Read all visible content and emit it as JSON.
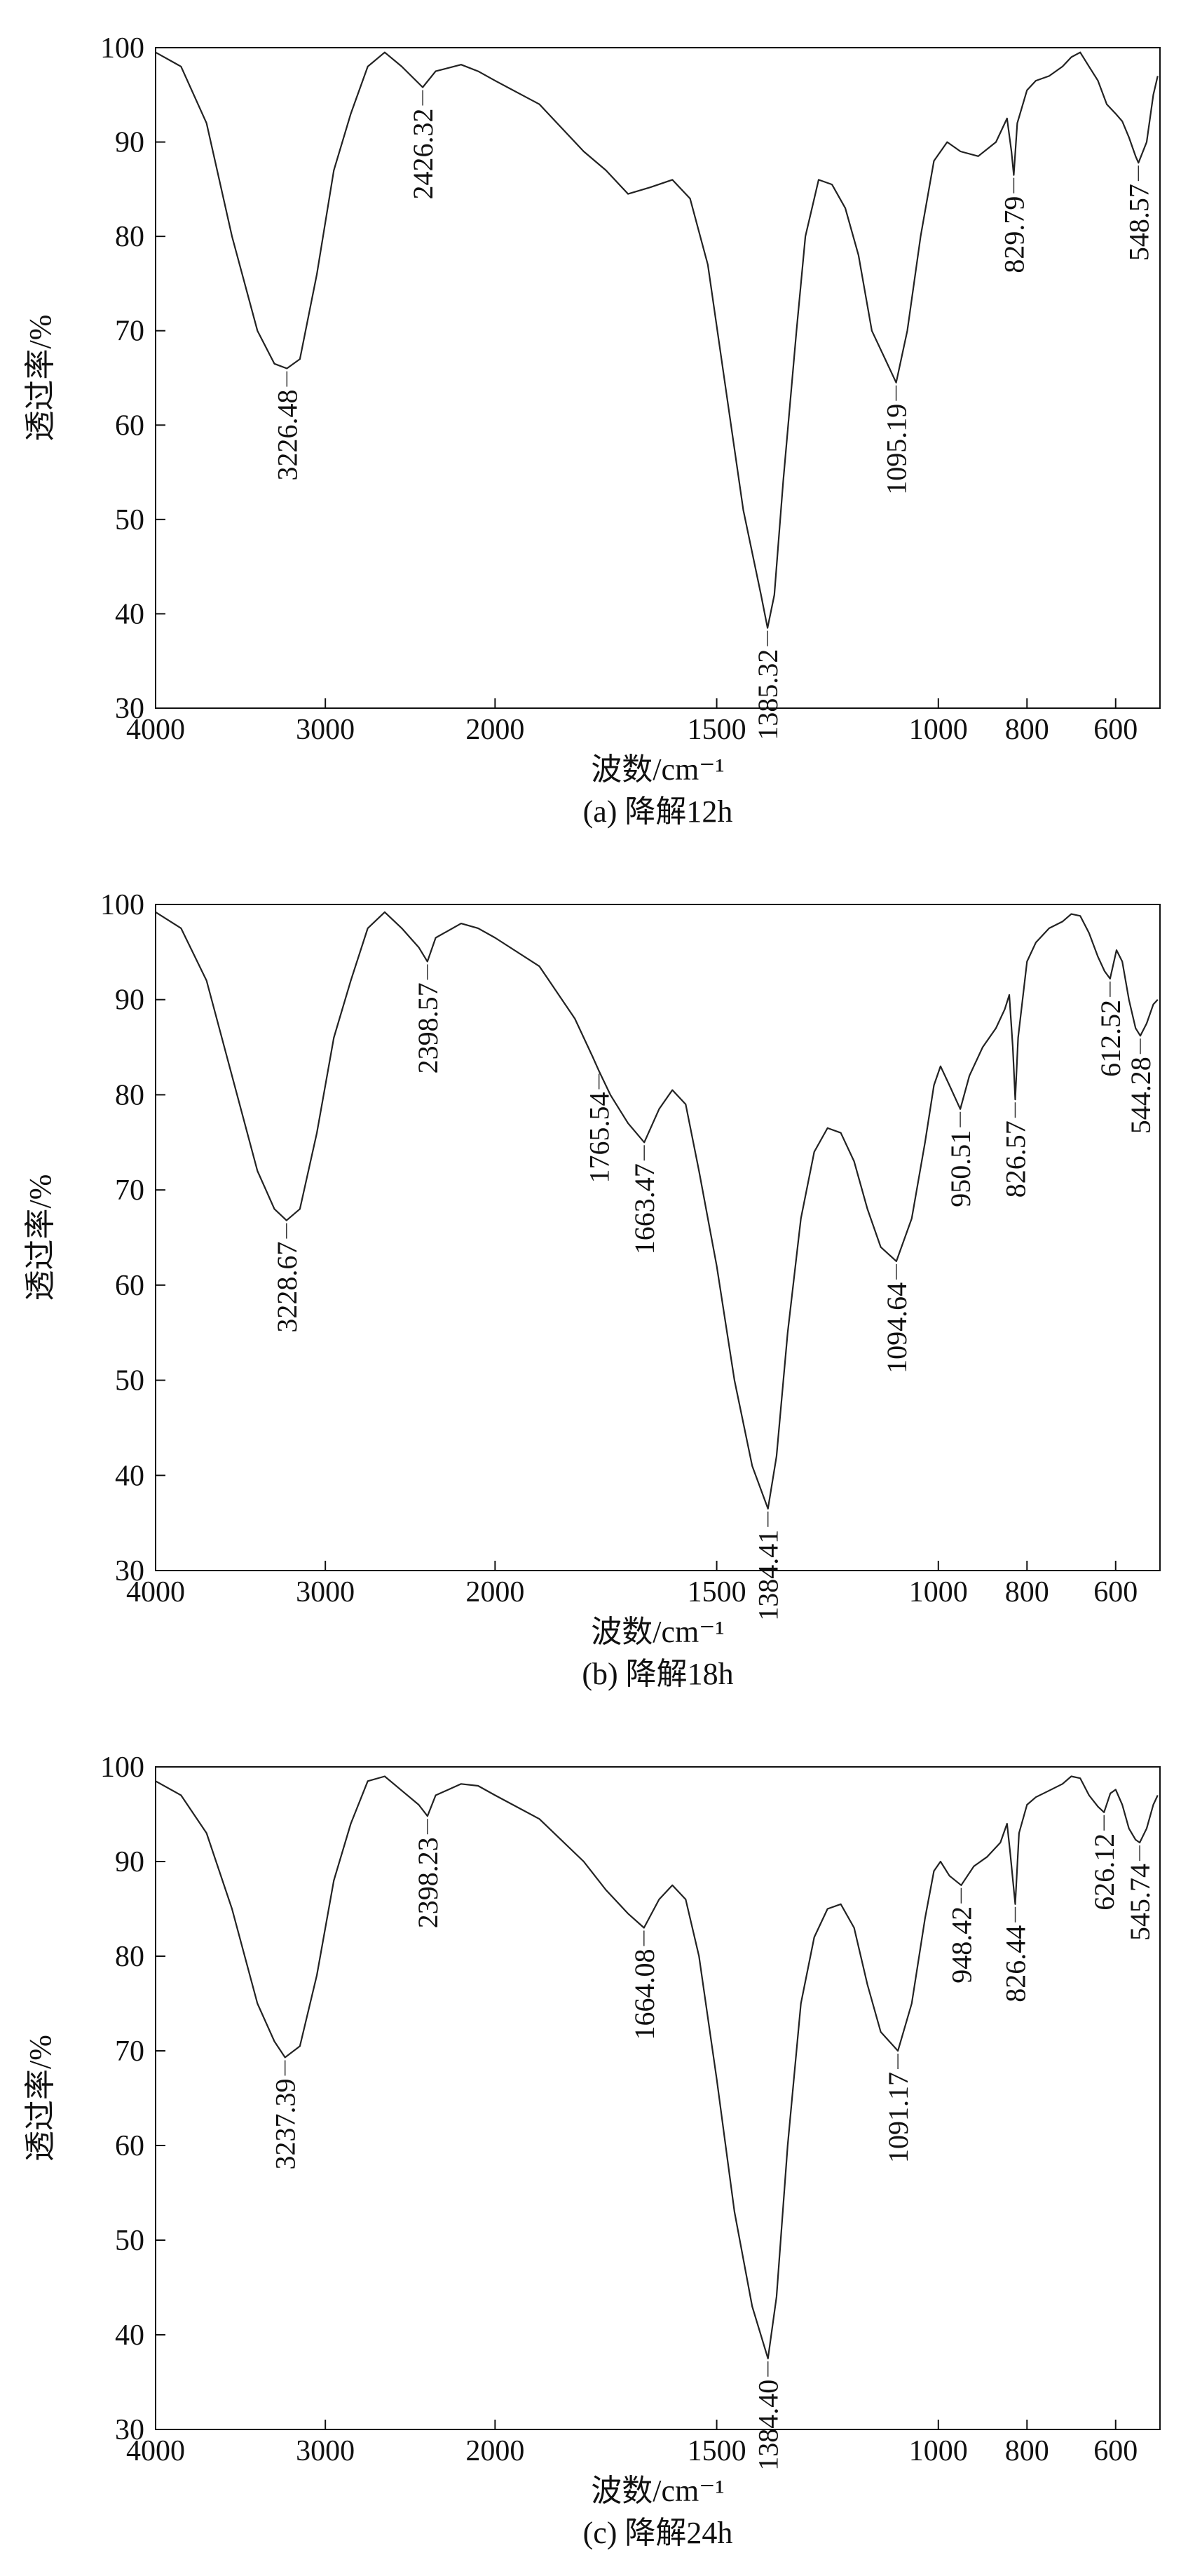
{
  "chart_data": [
    {
      "id": "a",
      "type": "line",
      "caption": "(a) 降解12h",
      "xlabel": "波数/cm⁻¹",
      "ylabel": "透过率/%",
      "xlim": [
        4000,
        500
      ],
      "ylim": [
        30,
        100
      ],
      "x_ticks": [
        4000,
        3000,
        2000,
        1500,
        1000,
        800,
        600
      ],
      "y_ticks": [
        30,
        40,
        50,
        60,
        70,
        80,
        90,
        100
      ],
      "series": [
        {
          "name": "降解12h",
          "points": [
            [
              4000,
              99.5
            ],
            [
              3850,
              98
            ],
            [
              3700,
              92
            ],
            [
              3550,
              80
            ],
            [
              3400,
              70
            ],
            [
              3300,
              66.5
            ],
            [
              3226.48,
              66
            ],
            [
              3150,
              67
            ],
            [
              3050,
              76
            ],
            [
              2950,
              87
            ],
            [
              2850,
              93
            ],
            [
              2750,
              98
            ],
            [
              2650,
              99.5
            ],
            [
              2550,
              98
            ],
            [
              2426.32,
              95.8
            ],
            [
              2350,
              97.5
            ],
            [
              2200,
              98.2
            ],
            [
              2100,
              97.5
            ],
            [
              2000,
              96.5
            ],
            [
              1900,
              94
            ],
            [
              1800,
              89
            ],
            [
              1750,
              87
            ],
            [
              1700,
              84.5
            ],
            [
              1650,
              85.2
            ],
            [
              1600,
              86
            ],
            [
              1560,
              84
            ],
            [
              1520,
              77
            ],
            [
              1480,
              64
            ],
            [
              1440,
              51
            ],
            [
              1400,
              42
            ],
            [
              1385.32,
              38.5
            ],
            [
              1370,
              42
            ],
            [
              1350,
              54
            ],
            [
              1320,
              70
            ],
            [
              1300,
              80
            ],
            [
              1270,
              86
            ],
            [
              1240,
              85.5
            ],
            [
              1210,
              83
            ],
            [
              1180,
              78
            ],
            [
              1150,
              70
            ],
            [
              1120,
              67
            ],
            [
              1095.19,
              64.5
            ],
            [
              1070,
              70
            ],
            [
              1040,
              80
            ],
            [
              1010,
              88
            ],
            [
              980,
              90
            ],
            [
              950,
              89
            ],
            [
              910,
              88.5
            ],
            [
              870,
              90
            ],
            [
              845,
              92.5
            ],
            [
              835,
              89
            ],
            [
              829.79,
              86.5
            ],
            [
              822,
              92
            ],
            [
              800,
              95.5
            ],
            [
              780,
              96.5
            ],
            [
              750,
              97
            ],
            [
              720,
              98
            ],
            [
              700,
              99
            ],
            [
              680,
              99.5
            ],
            [
              660,
              98
            ],
            [
              640,
              96.5
            ],
            [
              620,
              94
            ],
            [
              600,
              93
            ],
            [
              585,
              92.2
            ],
            [
              570,
              90.5
            ],
            [
              555,
              88.5
            ],
            [
              548.57,
              87.8
            ],
            [
              530,
              90
            ],
            [
              515,
              95
            ],
            [
              505,
              97
            ]
          ]
        }
      ],
      "annotations": [
        {
          "label": "3226.48",
          "x": 3226.48,
          "y": 66,
          "placement": "below"
        },
        {
          "label": "2426.32",
          "x": 2426.32,
          "y": 95.8,
          "placement": "below"
        },
        {
          "label": "1385.32",
          "x": 1385.32,
          "y": 38.5,
          "placement": "below"
        },
        {
          "label": "1095.19",
          "x": 1095.19,
          "y": 64.5,
          "placement": "below"
        },
        {
          "label": "829.79",
          "x": 829.79,
          "y": 86.5,
          "placement": "below"
        },
        {
          "label": "548.57",
          "x": 548.57,
          "y": 87.8,
          "placement": "below"
        }
      ]
    },
    {
      "id": "b",
      "type": "line",
      "caption": "(b) 降解18h",
      "xlabel": "波数/cm⁻¹",
      "ylabel": "透过率/%",
      "xlim": [
        4000,
        500
      ],
      "ylim": [
        30,
        100
      ],
      "x_ticks": [
        4000,
        3000,
        2000,
        1500,
        1000,
        800,
        600
      ],
      "y_ticks": [
        30,
        40,
        50,
        60,
        70,
        80,
        90,
        100
      ],
      "series": [
        {
          "name": "降解18h",
          "points": [
            [
              4000,
              99.2
            ],
            [
              3850,
              97.5
            ],
            [
              3700,
              92
            ],
            [
              3550,
              82
            ],
            [
              3400,
              72
            ],
            [
              3300,
              68
            ],
            [
              3228.67,
              66.8
            ],
            [
              3150,
              68
            ],
            [
              3050,
              76
            ],
            [
              2950,
              86
            ],
            [
              2850,
              92
            ],
            [
              2750,
              97.5
            ],
            [
              2650,
              99.2
            ],
            [
              2550,
              97.5
            ],
            [
              2450,
              95.5
            ],
            [
              2398.57,
              94
            ],
            [
              2350,
              96.5
            ],
            [
              2200,
              98
            ],
            [
              2100,
              97.5
            ],
            [
              2000,
              96.5
            ],
            [
              1900,
              93.5
            ],
            [
              1820,
              88
            ],
            [
              1780,
              84
            ],
            [
              1765.54,
              82.5
            ],
            [
              1740,
              80
            ],
            [
              1700,
              77
            ],
            [
              1663.47,
              75
            ],
            [
              1630,
              78.5
            ],
            [
              1600,
              80.5
            ],
            [
              1570,
              79
            ],
            [
              1540,
              72
            ],
            [
              1500,
              62
            ],
            [
              1460,
              50
            ],
            [
              1420,
              41
            ],
            [
              1384.41,
              36.5
            ],
            [
              1365,
              42
            ],
            [
              1340,
              55
            ],
            [
              1310,
              67
            ],
            [
              1280,
              74
            ],
            [
              1250,
              76.5
            ],
            [
              1220,
              76
            ],
            [
              1190,
              73
            ],
            [
              1160,
              68
            ],
            [
              1130,
              64
            ],
            [
              1094.64,
              62.5
            ],
            [
              1060,
              67
            ],
            [
              1030,
              75
            ],
            [
              1010,
              81
            ],
            [
              995,
              83
            ],
            [
              975,
              81
            ],
            [
              950.51,
              78.5
            ],
            [
              930,
              82
            ],
            [
              900,
              85
            ],
            [
              870,
              87
            ],
            [
              850,
              89
            ],
            [
              840,
              90.5
            ],
            [
              832,
              85
            ],
            [
              826.57,
              79.5
            ],
            [
              820,
              86
            ],
            [
              800,
              94
            ],
            [
              780,
              96
            ],
            [
              750,
              97.5
            ],
            [
              720,
              98.2
            ],
            [
              700,
              99
            ],
            [
              680,
              98.8
            ],
            [
              660,
              97
            ],
            [
              640,
              94.5
            ],
            [
              625,
              93
            ],
            [
              612.52,
              92.2
            ],
            [
              598,
              95.2
            ],
            [
              585,
              94
            ],
            [
              570,
              90
            ],
            [
              555,
              87
            ],
            [
              544.28,
              86.2
            ],
            [
              530,
              87.5
            ],
            [
              515,
              89.5
            ],
            [
              505,
              90
            ]
          ]
        }
      ],
      "annotations": [
        {
          "label": "3228.67",
          "x": 3228.67,
          "y": 66.8,
          "placement": "below"
        },
        {
          "label": "2398.57",
          "x": 2398.57,
          "y": 94,
          "placement": "below"
        },
        {
          "label": "1765.54",
          "x": 1765.54,
          "y": 82.5,
          "placement": "below"
        },
        {
          "label": "1663.47",
          "x": 1663.47,
          "y": 75,
          "placement": "below"
        },
        {
          "label": "1384.41",
          "x": 1384.41,
          "y": 36.5,
          "placement": "below"
        },
        {
          "label": "1094.64",
          "x": 1094.64,
          "y": 62.5,
          "placement": "below"
        },
        {
          "label": "950.51",
          "x": 950.51,
          "y": 78.5,
          "placement": "below"
        },
        {
          "label": "826.57",
          "x": 826.57,
          "y": 79.5,
          "placement": "below"
        },
        {
          "label": "612.52",
          "x": 612.52,
          "y": 92.2,
          "placement": "below"
        },
        {
          "label": "544.28",
          "x": 544.28,
          "y": 86.2,
          "placement": "below"
        }
      ]
    },
    {
      "id": "c",
      "type": "line",
      "caption": "(c) 降解24h",
      "xlabel": "波数/cm⁻¹",
      "ylabel": "透过率/%",
      "xlim": [
        4000,
        500
      ],
      "ylim": [
        30,
        100
      ],
      "x_ticks": [
        4000,
        3000,
        2000,
        1500,
        1000,
        800,
        600
      ],
      "y_ticks": [
        30,
        40,
        50,
        60,
        70,
        80,
        90,
        100
      ],
      "series": [
        {
          "name": "降解24h",
          "points": [
            [
              4000,
              98.5
            ],
            [
              3850,
              97
            ],
            [
              3700,
              93
            ],
            [
              3550,
              85
            ],
            [
              3400,
              75
            ],
            [
              3300,
              71
            ],
            [
              3237.39,
              69.3
            ],
            [
              3150,
              70.5
            ],
            [
              3050,
              78
            ],
            [
              2950,
              88
            ],
            [
              2850,
              94
            ],
            [
              2750,
              98.5
            ],
            [
              2650,
              99
            ],
            [
              2550,
              97.5
            ],
            [
              2450,
              96
            ],
            [
              2398.23,
              94.8
            ],
            [
              2350,
              97
            ],
            [
              2200,
              98.2
            ],
            [
              2100,
              98
            ],
            [
              2000,
              97
            ],
            [
              1900,
              94.5
            ],
            [
              1800,
              90
            ],
            [
              1750,
              87
            ],
            [
              1700,
              84.5
            ],
            [
              1664.08,
              83
            ],
            [
              1630,
              86
            ],
            [
              1600,
              87.5
            ],
            [
              1570,
              86
            ],
            [
              1540,
              80
            ],
            [
              1500,
              67
            ],
            [
              1460,
              53
            ],
            [
              1420,
              43
            ],
            [
              1384.4,
              37.5
            ],
            [
              1365,
              44
            ],
            [
              1340,
              60
            ],
            [
              1310,
              75
            ],
            [
              1280,
              82
            ],
            [
              1250,
              85
            ],
            [
              1220,
              85.5
            ],
            [
              1190,
              83
            ],
            [
              1160,
              77
            ],
            [
              1130,
              72
            ],
            [
              1091.17,
              70
            ],
            [
              1060,
              75
            ],
            [
              1030,
              84
            ],
            [
              1010,
              89
            ],
            [
              995,
              90
            ],
            [
              975,
              88.5
            ],
            [
              948.42,
              87.5
            ],
            [
              920,
              89.5
            ],
            [
              890,
              90.5
            ],
            [
              860,
              92
            ],
            [
              845,
              94
            ],
            [
              838,
              91
            ],
            [
              826.44,
              85.5
            ],
            [
              818,
              93
            ],
            [
              800,
              96
            ],
            [
              780,
              96.8
            ],
            [
              750,
              97.5
            ],
            [
              720,
              98.2
            ],
            [
              700,
              99
            ],
            [
              680,
              98.8
            ],
            [
              660,
              97
            ],
            [
              640,
              95.8
            ],
            [
              626.12,
              95.2
            ],
            [
              612,
              97.2
            ],
            [
              600,
              97.6
            ],
            [
              585,
              96
            ],
            [
              570,
              93.5
            ],
            [
              555,
              92.3
            ],
            [
              545.74,
              92
            ],
            [
              530,
              93.5
            ],
            [
              515,
              96
            ],
            [
              505,
              97
            ]
          ]
        }
      ],
      "annotations": [
        {
          "label": "3237.39",
          "x": 3237.39,
          "y": 69.3,
          "placement": "below"
        },
        {
          "label": "2398.23",
          "x": 2398.23,
          "y": 94.8,
          "placement": "below"
        },
        {
          "label": "1664.08",
          "x": 1664.08,
          "y": 83,
          "placement": "below"
        },
        {
          "label": "1384.40",
          "x": 1384.4,
          "y": 37.5,
          "placement": "below"
        },
        {
          "label": "1091.17",
          "x": 1091.17,
          "y": 70,
          "placement": "below"
        },
        {
          "label": "948.42",
          "x": 948.42,
          "y": 87.5,
          "placement": "below"
        },
        {
          "label": "826.44",
          "x": 826.44,
          "y": 85.5,
          "placement": "below"
        },
        {
          "label": "626.12",
          "x": 626.12,
          "y": 95.2,
          "placement": "below"
        },
        {
          "label": "545.74",
          "x": 545.74,
          "y": 92,
          "placement": "below"
        }
      ]
    }
  ]
}
